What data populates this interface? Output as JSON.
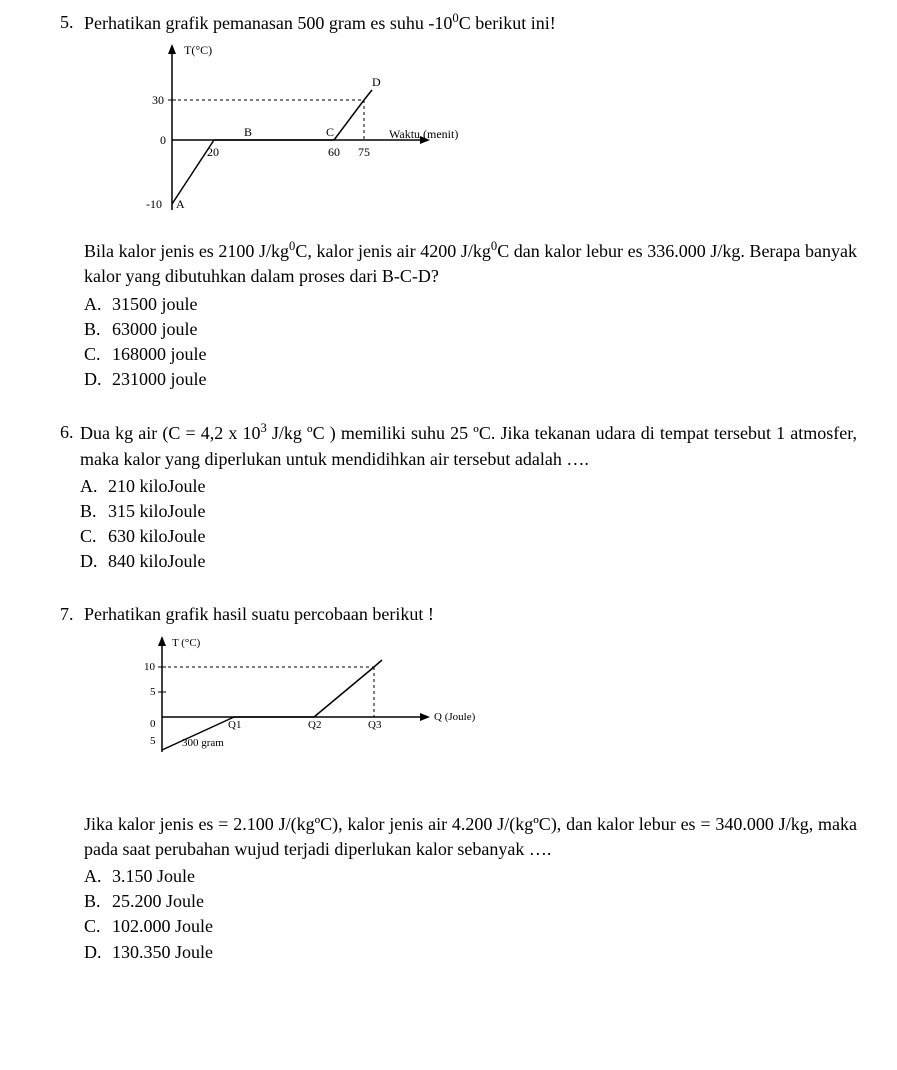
{
  "q5": {
    "number": "5.",
    "prompt_html": "Perhatikan grafik pemanasan 500 gram es  suhu -10<sup>0</sup>C berikut ini!",
    "chart": {
      "y_axis_label": "T(°C)",
      "x_axis_label": "Waktu (menit)",
      "y_ticks": [
        "30",
        "0",
        "-10"
      ],
      "x_ticks": [
        "20",
        "60",
        "75"
      ],
      "points": [
        "A",
        "B",
        "C",
        "D"
      ],
      "line_color": "#000000",
      "dash_color": "#000000",
      "background": "#ffffff"
    },
    "body_html": "Bila kalor jenis es 2100 J/kg<sup>0</sup>C, kalor jenis air 4200 J/kg<sup>0</sup>C dan kalor lebur es 336.000 J/kg. Berapa banyak kalor yang dibutuhkan dalam proses dari B-C-D?",
    "options": {
      "A": "31500 joule",
      "B": "63000 joule",
      "C": "168000 joule",
      "D": "231000 joule"
    }
  },
  "q6": {
    "number": "6.",
    "prompt_html": "Dua kg air (C = 4,2 x 10<sup>3</sup> J/kg ºC ) memiliki suhu 25 ºC. Jika tekanan udara di tempat tersebut 1 atmosfer, maka kalor yang diperlukan untuk mendidihkan air tersebut adalah ….",
    "options": {
      "A": "210 kiloJoule",
      "B": "315 kiloJoule",
      "C": "630 kiloJoule",
      "D": "840 kiloJoule"
    }
  },
  "q7": {
    "number": "7.",
    "prompt": "Perhatikan grafik hasil suatu percobaan berikut !",
    "chart": {
      "y_axis_label": "T (°C)",
      "x_axis_label": "Q (Joule)",
      "y_ticks": [
        "10",
        "5",
        "0",
        "5"
      ],
      "x_ticks": [
        "Q1",
        "Q2",
        "Q3"
      ],
      "annotation": "300 gram",
      "line_color": "#000000",
      "background": "#ffffff"
    },
    "body_html": "Jika kalor jenis es = 2.100 J/(kgºC), kalor jenis air 4.200 J/(kgºC), dan kalor lebur es = 340.000 J/kg, maka pada saat perubahan wujud terjadi diperlukan kalor sebanyak ….",
    "options": {
      "A": "3.150 Joule",
      "B": "25.200 Joule",
      "C": "102.000 Joule",
      "D": "130.350 Joule"
    }
  }
}
